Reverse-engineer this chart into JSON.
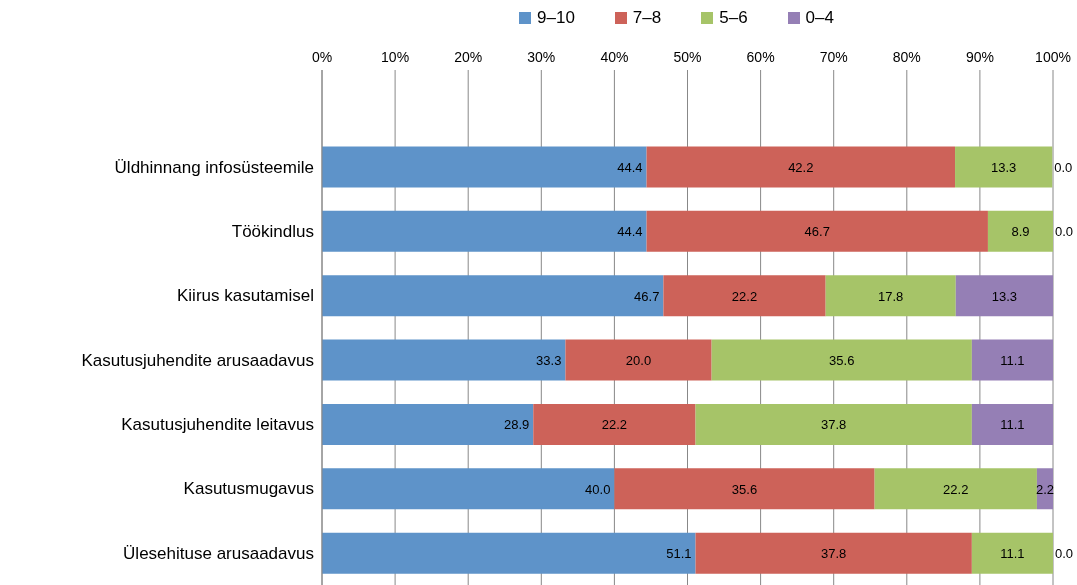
{
  "chart_data": {
    "type": "bar",
    "orientation": "horizontal",
    "stacked": true,
    "categories": [
      null,
      "Üldhinnang infosüsteemile",
      "Töökindlus",
      "Kiirus kasutamisel",
      "Kasutusjuhendite arusaadavus",
      "Kasutusjuhendite leitavus",
      "Kasutusmugavus",
      "Ülesehituse arusaadavus"
    ],
    "series": [
      {
        "name": "9–10",
        "color": "#5e93c9",
        "values": [
          null,
          44.4,
          44.4,
          46.7,
          33.3,
          28.9,
          40.0,
          51.1
        ],
        "value_labels": [
          null,
          "44.4",
          "44.4",
          "46.7",
          "33.3",
          "28.9",
          "40.0",
          "51.1"
        ]
      },
      {
        "name": "7–8",
        "color": "#cd6259",
        "values": [
          null,
          42.2,
          46.7,
          22.2,
          20.0,
          22.2,
          35.6,
          37.8
        ],
        "value_labels": [
          null,
          "42.2",
          "46.7",
          "22.2",
          "20.0",
          "22.2",
          "35.6",
          "37.8"
        ]
      },
      {
        "name": "5–6",
        "color": "#a6c468",
        "values": [
          null,
          13.3,
          8.9,
          17.8,
          35.6,
          37.8,
          22.2,
          11.1
        ],
        "value_labels": [
          null,
          "13.3",
          "8.9",
          "17.8",
          "35.6",
          "37.8",
          "22.2",
          "11.1"
        ]
      },
      {
        "name": "0–4",
        "color": "#957fb5",
        "values": [
          null,
          0.0,
          0.0,
          13.3,
          11.1,
          11.1,
          2.2,
          0.0
        ],
        "value_labels": [
          null,
          "0.0",
          "0.0",
          "13.3",
          "11.1",
          "11.1",
          "2.2",
          "0.0"
        ]
      }
    ],
    "xlim": [
      0,
      100
    ],
    "xticks": [
      {
        "value": 0,
        "label": "0%"
      },
      {
        "value": 10,
        "label": "10%"
      },
      {
        "value": 20,
        "label": "20%"
      },
      {
        "value": 30,
        "label": "30%"
      },
      {
        "value": 40,
        "label": "40%"
      },
      {
        "value": 50,
        "label": "50%"
      },
      {
        "value": 60,
        "label": "60%"
      },
      {
        "value": 70,
        "label": "70%"
      },
      {
        "value": 80,
        "label": "80%"
      },
      {
        "value": 90,
        "label": "90%"
      },
      {
        "value": 100,
        "label": "100%"
      }
    ],
    "grid": "x",
    "legend": "top"
  }
}
